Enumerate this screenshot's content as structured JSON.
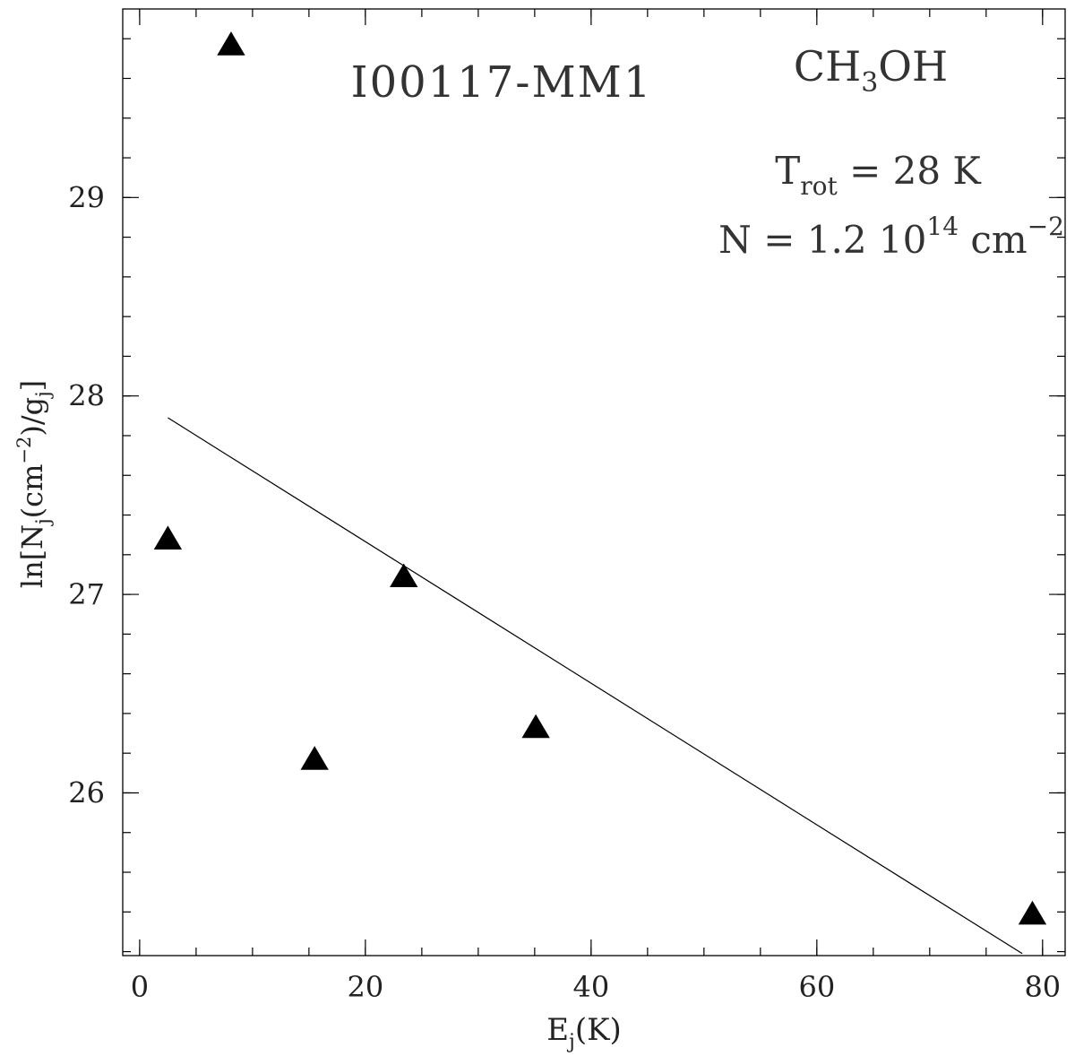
{
  "chart_data": {
    "type": "scatter",
    "source_name": "I00117-MM1",
    "molecule": {
      "base": "CH",
      "sub": "3",
      "tail": "OH"
    },
    "annotation_trot": {
      "main": "T",
      "sub": "rot",
      "rest": " = 28 K"
    },
    "annotation_n": {
      "main": "N = 1.2 10",
      "sup": "14",
      "unit": " cm",
      "unit_sup": "−2"
    },
    "xlabel": {
      "main": "E",
      "sub": "j",
      "rest": "(K)"
    },
    "ylabel": {
      "pre": "ln[N",
      "sub1": "j",
      "mid": "(cm",
      "sup": "−2",
      "mid2": ")/g",
      "sub2": "j",
      "post": "]"
    },
    "xlim": [
      -1.5,
      82
    ],
    "ylim": [
      25.18,
      29.95
    ],
    "x_ticks": [
      0,
      20,
      40,
      60,
      80
    ],
    "x_minor_step": 5,
    "y_ticks": [
      26,
      27,
      28,
      29
    ],
    "y_minor_step": 0.2,
    "points": [
      {
        "x": 2.5,
        "y": 27.28
      },
      {
        "x": 8.1,
        "y": 29.77
      },
      {
        "x": 15.5,
        "y": 26.17
      },
      {
        "x": 23.4,
        "y": 27.09
      },
      {
        "x": 35.1,
        "y": 26.33
      },
      {
        "x": 79.1,
        "y": 25.39
      }
    ],
    "fit_line": {
      "x": [
        2.5,
        78.2
      ],
      "y": [
        27.89,
        25.19
      ]
    },
    "grid": false,
    "marker": "filled-triangle",
    "colors": {
      "marker": "#000000",
      "line": "#000000",
      "axes": "#000000",
      "text": "#333333"
    }
  }
}
